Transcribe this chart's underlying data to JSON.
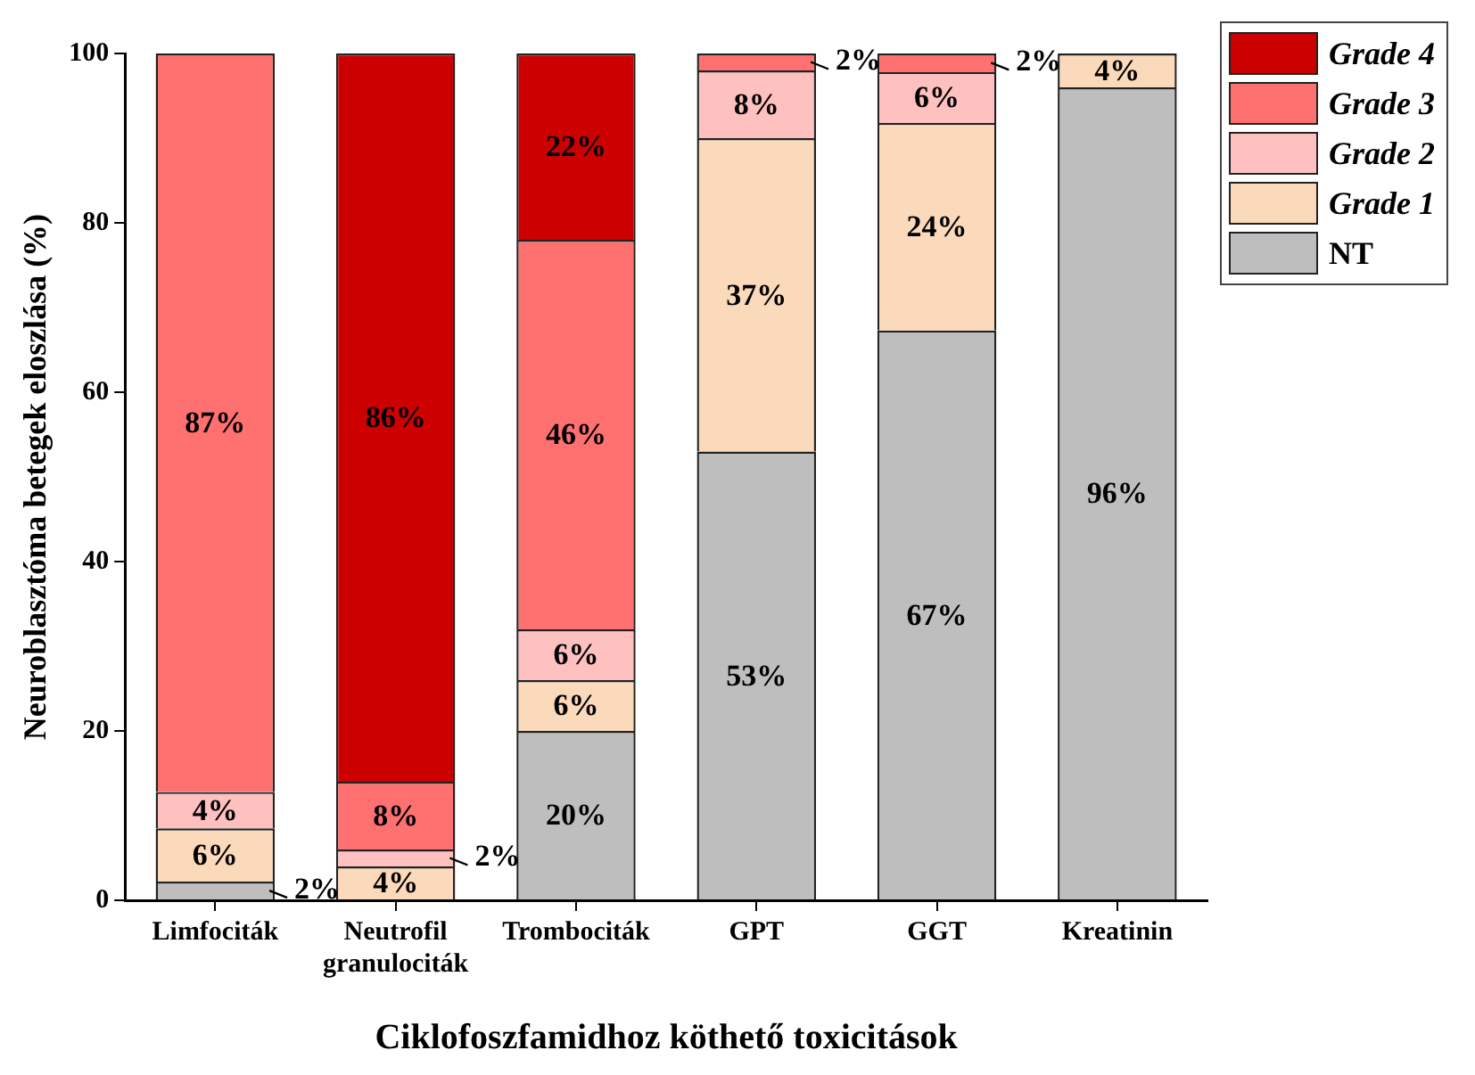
{
  "chart_data": {
    "type": "bar",
    "stacked": true,
    "ylabel": "Neuroblasztóma betegek eloszlása (%)",
    "xlabel": "Ciklofoszfamidhoz köthető toxicitások",
    "categories": [
      "Limfociták",
      "Neutrofil granulociták",
      "Trombociták",
      "GPT",
      "GGT",
      "Kreatinin"
    ],
    "series": [
      {
        "name": "NT",
        "color": "#bebebe",
        "values": [
          2.2,
          null,
          20,
          53,
          67.3,
          96
        ],
        "value_labels": [
          "2%",
          null,
          "20%",
          "53%",
          "67%",
          "96%"
        ]
      },
      {
        "name": "Grade 1",
        "color": "#fbd9bb",
        "values": [
          6.3,
          4,
          6,
          37,
          24.5,
          4
        ],
        "value_labels": [
          "6%",
          "4%",
          "6%",
          "37%",
          "24%",
          "4%"
        ]
      },
      {
        "name": "Grade 2",
        "color": "#ffc0c0",
        "values": [
          4.3,
          2,
          6,
          8,
          6,
          null
        ],
        "value_labels": [
          "4%",
          "2%",
          "6%",
          "8%",
          "6%",
          null
        ]
      },
      {
        "name": "Grade 3",
        "color": "#ff7070",
        "values": [
          87.2,
          8,
          46,
          2,
          2.2,
          null
        ],
        "value_labels": [
          "87%",
          "8%",
          "46%",
          "2%",
          "2%",
          null
        ]
      },
      {
        "name": "Grade 4",
        "color": "#cc0000",
        "values": [
          null,
          86,
          22,
          null,
          null,
          null
        ],
        "value_labels": [
          null,
          "86%",
          "22%",
          null,
          null,
          null
        ]
      }
    ],
    "ylim": [
      0,
      100
    ],
    "yticks": [
      0,
      20,
      40,
      60,
      80,
      100
    ],
    "grid": false,
    "legend": "top right"
  }
}
